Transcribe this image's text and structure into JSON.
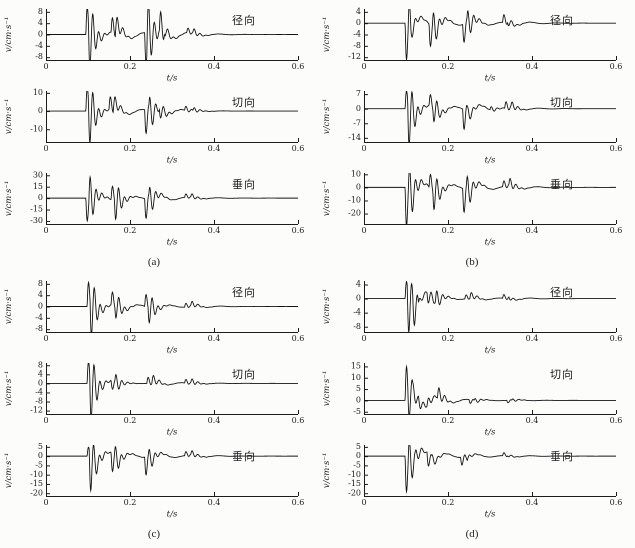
{
  "figure": {
    "ink": "#1c1c1c",
    "paper": "#fcfcfa",
    "trace_color": "#141414"
  },
  "chart_data": [
    {
      "panel_label": "(a)",
      "subplots": [
        {
          "type": "line",
          "trace_label": "径向",
          "ylabel": "v/cm·s⁻¹",
          "xlabel": "t/s",
          "xlim": [
            0,
            0.6
          ],
          "xticks": [
            0,
            0.2,
            0.4,
            0.6
          ],
          "yticks": [
            8,
            4,
            0,
            -4,
            -8
          ],
          "ylim": [
            -9,
            9
          ],
          "events": [
            [
              0.095,
              9
            ],
            [
              0.101,
              -9
            ],
            [
              0.155,
              5
            ],
            [
              0.165,
              4
            ],
            [
              0.235,
              -10
            ],
            [
              0.24,
              9
            ],
            [
              0.27,
              6
            ],
            [
              0.282,
              -3
            ],
            [
              0.335,
              1.5
            ],
            [
              0.35,
              1
            ]
          ]
        },
        {
          "type": "line",
          "trace_label": "切向",
          "ylabel": "v/cm·s⁻¹",
          "xlabel": "t/s",
          "xlim": [
            0,
            0.6
          ],
          "xticks": [
            0,
            0.2,
            0.4,
            0.6
          ],
          "yticks": [
            10,
            0,
            -10
          ],
          "ylim": [
            -17,
            11
          ],
          "events": [
            [
              0.095,
              12
            ],
            [
              0.101,
              -14
            ],
            [
              0.15,
              6
            ],
            [
              0.16,
              5
            ],
            [
              0.235,
              -12
            ],
            [
              0.245,
              8
            ],
            [
              0.27,
              -6
            ],
            [
              0.33,
              2
            ],
            [
              0.35,
              2
            ]
          ]
        },
        {
          "type": "line",
          "trace_label": "垂向",
          "ylabel": "v/cm·s⁻¹",
          "xlabel": "t/s",
          "xlim": [
            0,
            0.6
          ],
          "xticks": [
            0,
            0.2,
            0.4,
            0.6
          ],
          "yticks": [
            30,
            15,
            0,
            -15,
            -30
          ],
          "ylim": [
            -34,
            33
          ],
          "events": [
            [
              0.095,
              -28
            ],
            [
              0.102,
              20
            ],
            [
              0.155,
              16
            ],
            [
              0.163,
              -22
            ],
            [
              0.235,
              -24
            ],
            [
              0.245,
              16
            ],
            [
              0.33,
              4
            ],
            [
              0.345,
              3
            ]
          ]
        }
      ]
    },
    {
      "panel_label": "(b)",
      "subplots": [
        {
          "type": "line",
          "trace_label": "径向",
          "ylabel": "v/cm·s⁻¹",
          "xlabel": "t/s",
          "xlim": [
            0,
            0.6
          ],
          "xticks": [
            0,
            0.2,
            0.4,
            0.6
          ],
          "yticks": [
            4,
            0,
            -4,
            -8,
            -12
          ],
          "ylim": [
            -13,
            5
          ],
          "events": [
            [
              0.098,
              -12
            ],
            [
              0.105,
              4
            ],
            [
              0.112,
              3
            ],
            [
              0.155,
              -7
            ],
            [
              0.163,
              3
            ],
            [
              0.235,
              -6
            ],
            [
              0.245,
              4.5
            ],
            [
              0.33,
              2.5
            ],
            [
              0.342,
              -2
            ]
          ]
        },
        {
          "type": "line",
          "trace_label": "切向",
          "ylabel": "v/cm·s⁻¹",
          "xlabel": "t/s",
          "xlim": [
            0,
            0.6
          ],
          "xticks": [
            0,
            0.2,
            0.4,
            0.6
          ],
          "yticks": [
            7,
            0,
            -7,
            -14
          ],
          "ylim": [
            -16,
            8.5
          ],
          "events": [
            [
              0.098,
              8
            ],
            [
              0.104,
              -15
            ],
            [
              0.155,
              5
            ],
            [
              0.164,
              -6
            ],
            [
              0.235,
              -9
            ],
            [
              0.246,
              2
            ],
            [
              0.3,
              1.5
            ],
            [
              0.335,
              3
            ],
            [
              0.35,
              1.5
            ]
          ]
        },
        {
          "type": "line",
          "trace_label": "垂向",
          "ylabel": "v/cm·s⁻¹",
          "xlabel": "t/s",
          "xlim": [
            0,
            0.6
          ],
          "xticks": [
            0,
            0.2,
            0.4,
            0.6
          ],
          "yticks": [
            10,
            0,
            -10,
            -20
          ],
          "ylim": [
            -28,
            11
          ],
          "events": [
            [
              0.098,
              -28
            ],
            [
              0.106,
              10
            ],
            [
              0.155,
              10
            ],
            [
              0.164,
              -14
            ],
            [
              0.235,
              -17
            ],
            [
              0.244,
              7
            ],
            [
              0.33,
              4
            ],
            [
              0.345,
              4
            ]
          ]
        }
      ]
    },
    {
      "panel_label": "(c)",
      "subplots": [
        {
          "type": "line",
          "trace_label": "径向",
          "ylabel": "v/cm·s⁻¹",
          "xlabel": "t/s",
          "xlim": [
            0,
            0.6
          ],
          "xticks": [
            0,
            0.2,
            0.4,
            0.6
          ],
          "yticks": [
            8,
            4,
            0,
            -4,
            -8
          ],
          "ylim": [
            -9,
            9
          ],
          "events": [
            [
              0.098,
              8
            ],
            [
              0.105,
              -8
            ],
            [
              0.155,
              4
            ],
            [
              0.164,
              -4
            ],
            [
              0.235,
              4
            ],
            [
              0.243,
              -4.5
            ],
            [
              0.33,
              1.2
            ],
            [
              0.345,
              1
            ]
          ]
        },
        {
          "type": "line",
          "trace_label": "切向",
          "ylabel": "v/cm·s⁻¹",
          "xlabel": "t/s",
          "xlim": [
            0,
            0.6
          ],
          "xticks": [
            0,
            0.2,
            0.4,
            0.6
          ],
          "yticks": [
            8,
            4,
            0,
            -4,
            -8,
            -12
          ],
          "ylim": [
            -13.5,
            9
          ],
          "events": [
            [
              0.098,
              9
            ],
            [
              0.104,
              -13
            ],
            [
              0.155,
              -3.5
            ],
            [
              0.164,
              3
            ],
            [
              0.24,
              2.5
            ],
            [
              0.252,
              2
            ],
            [
              0.33,
              1.5
            ],
            [
              0.345,
              1.2
            ]
          ]
        },
        {
          "type": "line",
          "trace_label": "垂向",
          "ylabel": "v/cm·s⁻¹",
          "xlabel": "t/s",
          "xlim": [
            0,
            0.6
          ],
          "xticks": [
            0,
            0.2,
            0.4,
            0.6
          ],
          "yticks": [
            5,
            0,
            -5,
            -10,
            -15,
            -20
          ],
          "ylim": [
            -21.5,
            6
          ],
          "events": [
            [
              0.098,
              4.5
            ],
            [
              0.103,
              -17
            ],
            [
              0.155,
              -9
            ],
            [
              0.163,
              3
            ],
            [
              0.235,
              -9
            ],
            [
              0.244,
              2.5
            ],
            [
              0.33,
              2
            ],
            [
              0.345,
              1.5
            ]
          ]
        }
      ]
    },
    {
      "panel_label": "(d)",
      "subplots": [
        {
          "type": "line",
          "trace_label": "径向",
          "ylabel": "v/cm·s⁻¹",
          "xlabel": "t/s",
          "xlim": [
            0,
            0.6
          ],
          "xticks": [
            0,
            0.2,
            0.4,
            0.6
          ],
          "yticks": [
            4,
            0,
            -4,
            -8
          ],
          "ylim": [
            -9.5,
            5
          ],
          "events": [
            [
              0.098,
              4.5
            ],
            [
              0.103,
              -8.5
            ],
            [
              0.116,
              -3
            ],
            [
              0.13,
              3
            ],
            [
              0.15,
              -2.5
            ],
            [
              0.17,
              2.5
            ],
            [
              0.24,
              1
            ],
            [
              0.252,
              1
            ],
            [
              0.33,
              1
            ],
            [
              0.345,
              -0.8
            ]
          ]
        },
        {
          "type": "line",
          "trace_label": "切向",
          "ylabel": "v/cm·s⁻¹",
          "xlabel": "t/s",
          "xlim": [
            0,
            0.6
          ],
          "xticks": [
            0,
            0.2,
            0.4,
            0.6
          ],
          "yticks": [
            15,
            10,
            5,
            0,
            -5
          ],
          "ylim": [
            -6,
            16.5
          ],
          "events": [
            [
              0.098,
              14
            ],
            [
              0.104,
              -4
            ],
            [
              0.116,
              3
            ],
            [
              0.13,
              -3
            ],
            [
              0.15,
              2
            ],
            [
              0.175,
              4
            ],
            [
              0.25,
              -1.5
            ],
            [
              0.262,
              1.5
            ],
            [
              0.34,
              -1
            ],
            [
              0.352,
              1
            ]
          ]
        },
        {
          "type": "line",
          "trace_label": "垂向",
          "ylabel": "v/cm·s⁻¹",
          "xlabel": "t/s",
          "xlim": [
            0,
            0.6
          ],
          "xticks": [
            0,
            0.2,
            0.4,
            0.6
          ],
          "yticks": [
            5,
            0,
            -5,
            -10,
            -15,
            -20
          ],
          "ylim": [
            -21.5,
            6
          ],
          "events": [
            [
              0.098,
              -18
            ],
            [
              0.105,
              4
            ],
            [
              0.122,
              2
            ],
            [
              0.15,
              -6
            ],
            [
              0.161,
              2.5
            ],
            [
              0.23,
              -4
            ],
            [
              0.246,
              1.5
            ],
            [
              0.33,
              1.5
            ],
            [
              0.342,
              -1
            ]
          ]
        }
      ]
    }
  ]
}
